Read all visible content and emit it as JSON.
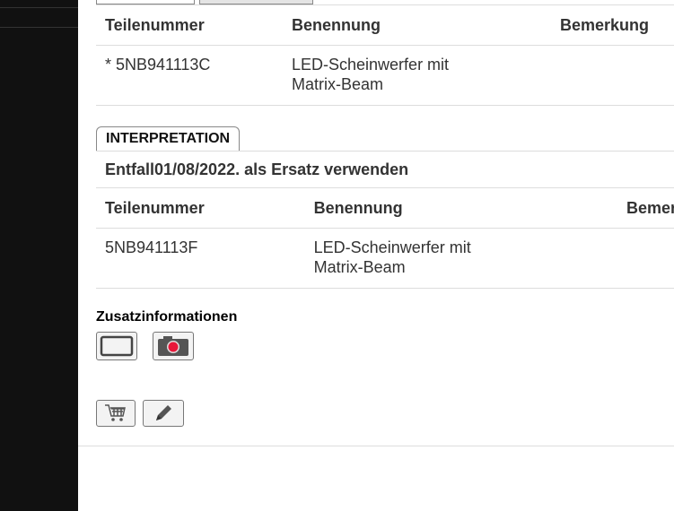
{
  "table1": {
    "headers": [
      "Teilenummer",
      "Benennung",
      "Bemerkung"
    ],
    "rows": [
      {
        "part": "* 5NB941113C",
        "name_line1": "LED-Scheinwerfer mit",
        "name_line2": "Matrix-Beam",
        "remark": ""
      }
    ]
  },
  "interpretation": {
    "tab_label": "INTERPRETATION",
    "note": "Entfall01/08/2022. als Ersatz verwenden"
  },
  "table2": {
    "headers": [
      "Teilenummer",
      "Benennung",
      "Bemerkung"
    ],
    "rows": [
      {
        "part": "5NB941113F",
        "name_line1": "LED-Scheinwerfer mit",
        "name_line2": "Matrix-Beam",
        "remark": ""
      }
    ]
  },
  "extra": {
    "label": "Zusatzinformationen",
    "icons": [
      "frame-icon",
      "camera-icon"
    ]
  },
  "actions": {
    "icons": [
      "cart-icon",
      "pencil-icon"
    ]
  },
  "colors": {
    "sidebar": "#111111",
    "camera_dot": "#e8173a"
  }
}
